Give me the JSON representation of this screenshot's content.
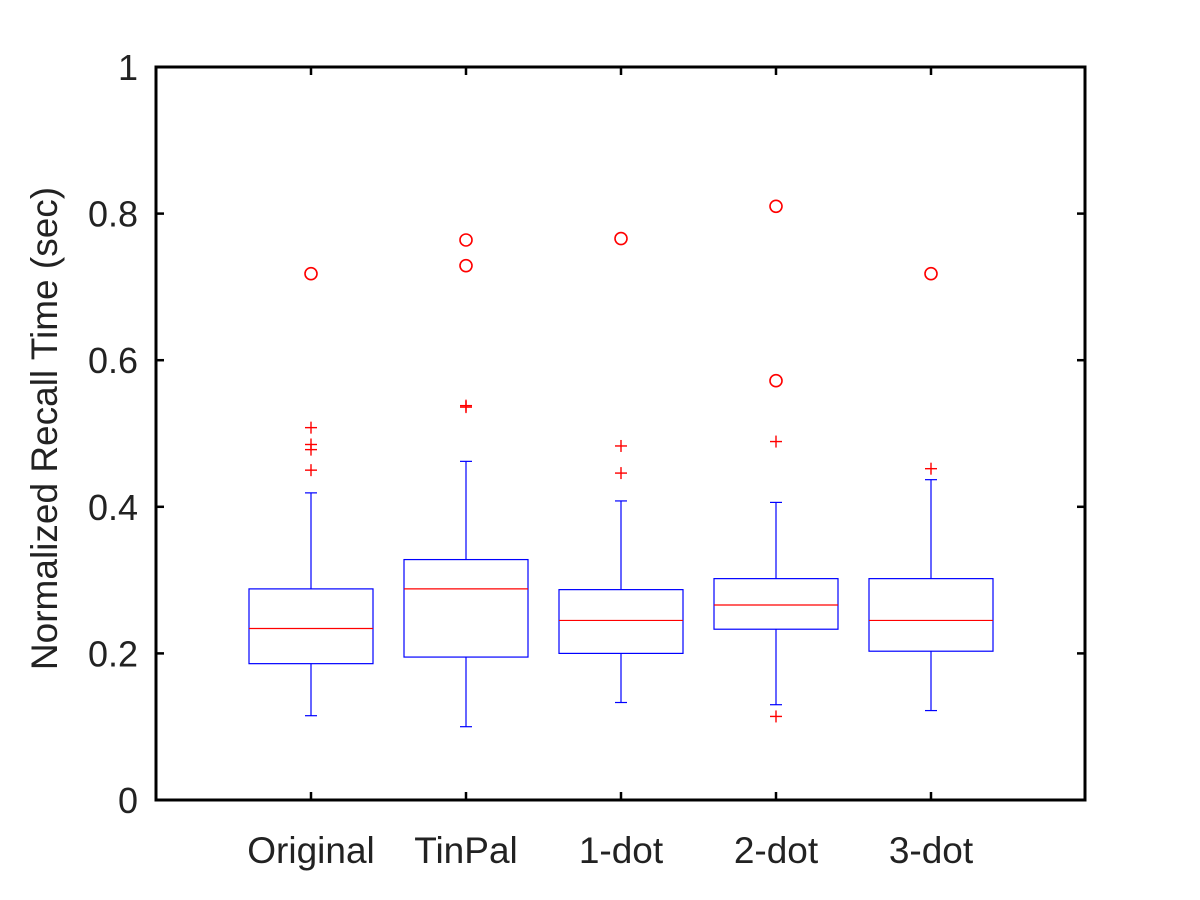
{
  "chart_data": {
    "type": "box",
    "title": "",
    "xlabel": "",
    "ylabel": "Normalized Recall Time (sec)",
    "ylim": [
      0,
      1
    ],
    "yticks": [
      0,
      0.2,
      0.4,
      0.6,
      0.8,
      1
    ],
    "ytick_labels": [
      "0",
      "0.2",
      "0.4",
      "0.6",
      "0.8",
      "1"
    ],
    "grid": false,
    "legend": "none",
    "colors": {
      "box": "#0000ff",
      "median": "#ff0000",
      "outlier": "#ff0000",
      "axis": "#000000"
    },
    "categories": [
      "Original",
      "TinPal",
      "1-dot",
      "2-dot",
      "3-dot"
    ],
    "boxes": [
      {
        "category": "Original",
        "whisker_low": 0.115,
        "q1": 0.186,
        "median": 0.234,
        "q3": 0.288,
        "whisker_high": 0.419,
        "outliers_plus": [
          0.45,
          0.478,
          0.485,
          0.508
        ],
        "outliers_circle": [
          0.718
        ]
      },
      {
        "category": "TinPal",
        "whisker_low": 0.1,
        "q1": 0.195,
        "median": 0.288,
        "q3": 0.328,
        "whisker_high": 0.462,
        "outliers_plus": [
          0.536,
          0.538
        ],
        "outliers_circle": [
          0.729,
          0.764
        ]
      },
      {
        "category": "1-dot",
        "whisker_low": 0.133,
        "q1": 0.2,
        "median": 0.245,
        "q3": 0.287,
        "whisker_high": 0.408,
        "outliers_plus": [
          0.446,
          0.483
        ],
        "outliers_circle": [
          0.766
        ]
      },
      {
        "category": "2-dot",
        "whisker_low": 0.13,
        "q1": 0.233,
        "median": 0.266,
        "q3": 0.302,
        "whisker_high": 0.406,
        "outliers_plus": [
          0.114,
          0.489
        ],
        "outliers_circle": [
          0.572,
          0.81
        ]
      },
      {
        "category": "3-dot",
        "whisker_low": 0.122,
        "q1": 0.203,
        "median": 0.245,
        "q3": 0.302,
        "whisker_high": 0.437,
        "outliers_plus": [
          0.452
        ],
        "outliers_circle": [
          0.718
        ]
      }
    ]
  }
}
